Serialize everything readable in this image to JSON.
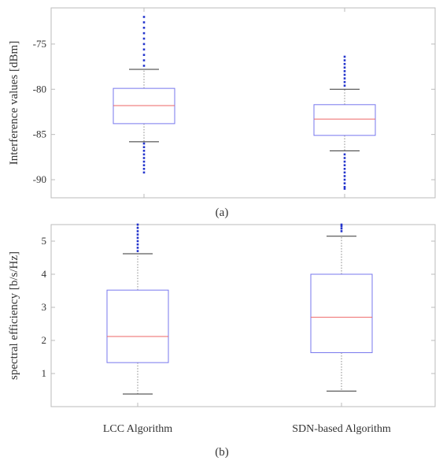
{
  "chart_data": [
    {
      "type": "box",
      "panel_label": "(a)",
      "ylabel": "Interference values [dBm]",
      "ylim": [
        -92,
        -71
      ],
      "yticks": [
        -90,
        -85,
        -80,
        -75
      ],
      "ytick_labels": [
        "-90",
        "-85",
        "-80",
        "-75"
      ],
      "categories": [
        "LCC Algorithm",
        "SDN-based Algorithm"
      ],
      "show_category_labels": false,
      "boxes": [
        {
          "name": "LCC Algorithm",
          "whisker_low": -85.8,
          "q1": -83.8,
          "median": -81.8,
          "q3": -79.9,
          "whisker_high": -77.8,
          "outliers_low": [
            -86.0,
            -86.4,
            -86.8,
            -87.2,
            -87.6,
            -88.0,
            -88.4,
            -88.8,
            -89.2
          ],
          "outliers_high": [
            -77.4,
            -76.8,
            -76.2,
            -75.6,
            -75.0,
            -74.4,
            -73.8,
            -73.2,
            -72.6,
            -72.0
          ]
        },
        {
          "name": "SDN-based Algorithm",
          "whisker_low": -86.8,
          "q1": -85.1,
          "median": -83.3,
          "q3": -81.7,
          "whisker_high": -80.0,
          "outliers_low": [
            -87.2,
            -87.6,
            -88.0,
            -88.4,
            -88.8,
            -89.2,
            -89.6,
            -90.0,
            -90.4,
            -90.8,
            -91.0
          ],
          "outliers_high": [
            -79.6,
            -79.2,
            -78.8,
            -78.4,
            -78.0,
            -77.6,
            -77.2,
            -76.8,
            -76.4
          ]
        }
      ],
      "colors": {
        "box": "#7777ee",
        "median": "#ee6666",
        "outlier": "#2233cc",
        "whisker": "#888888",
        "axes": "#bbbbbb"
      }
    },
    {
      "type": "box",
      "panel_label": "(b)",
      "ylabel": "spectral efficiency [b/s/Hz]",
      "ylim": [
        0,
        5.5
      ],
      "yticks": [
        1,
        2,
        3,
        4,
        5
      ],
      "ytick_labels": [
        "1",
        "2",
        "3",
        "4",
        "5"
      ],
      "categories": [
        "LCC Algorithm",
        "SDN-based Algorithm"
      ],
      "show_category_labels": true,
      "boxes": [
        {
          "name": "LCC Algorithm",
          "whisker_low": 0.38,
          "q1": 1.33,
          "median": 2.12,
          "q3": 3.52,
          "whisker_high": 4.62,
          "outliers_low": [],
          "outliers_high": [
            4.7,
            4.8,
            4.9,
            5.0,
            5.1,
            5.2,
            5.3,
            5.4,
            5.5
          ]
        },
        {
          "name": "SDN-based Algorithm",
          "whisker_low": 0.47,
          "q1": 1.63,
          "median": 2.7,
          "q3": 4.0,
          "whisker_high": 5.15,
          "outliers_low": [],
          "outliers_high": [
            5.3,
            5.38,
            5.45,
            5.5
          ]
        }
      ],
      "colors": {
        "box": "#7777ee",
        "median": "#ee6666",
        "outlier": "#2233cc",
        "whisker": "#888888",
        "axes": "#bbbbbb"
      }
    }
  ]
}
